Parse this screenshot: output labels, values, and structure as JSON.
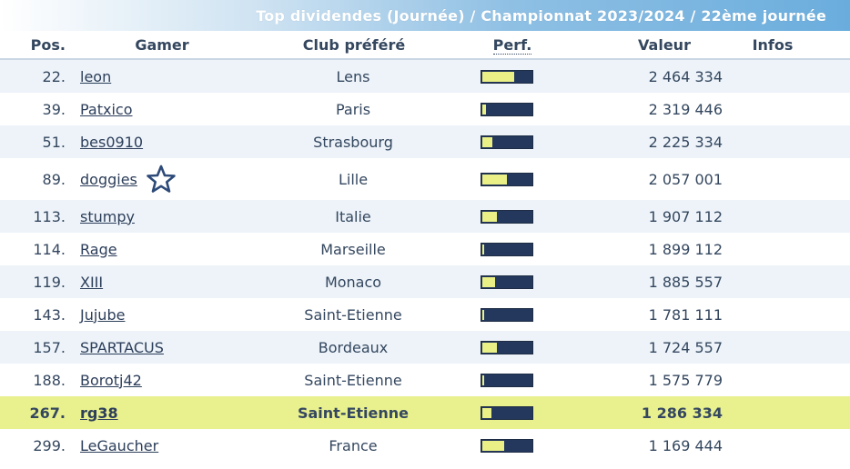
{
  "banner": {
    "title": "Top dividendes (Journée) / Championnat 2023/2024 / 22ème journée"
  },
  "headers": {
    "pos": "Pos.",
    "gamer": "Gamer",
    "club": "Club préféré",
    "perf": "Perf.",
    "value": "Valeur",
    "info": "Infos"
  },
  "rows": [
    {
      "pos": "22.",
      "gamer": "leon",
      "club": "Lens",
      "perf": 0.65,
      "value": "2 464 334"
    },
    {
      "pos": "39.",
      "gamer": "Patxico",
      "club": "Paris",
      "perf": 0.07,
      "value": "2 319 446"
    },
    {
      "pos": "51.",
      "gamer": "bes0910",
      "club": "Strasbourg",
      "perf": 0.2,
      "value": "2 225 334"
    },
    {
      "pos": "89.",
      "gamer": "doggies",
      "club": "Lille",
      "perf": 0.5,
      "value": "2 057 001",
      "star": true
    },
    {
      "pos": "113.",
      "gamer": "stumpy",
      "club": "Italie",
      "perf": 0.3,
      "value": "1 907 112"
    },
    {
      "pos": "114.",
      "gamer": "Rage",
      "club": "Marseille",
      "perf": 0.03,
      "value": "1 899 112"
    },
    {
      "pos": "119.",
      "gamer": "XIII",
      "club": "Monaco",
      "perf": 0.25,
      "value": "1 885 557"
    },
    {
      "pos": "143.",
      "gamer": "Jujube",
      "club": "Saint-Etienne",
      "perf": 0.03,
      "value": "1 781 111"
    },
    {
      "pos": "157.",
      "gamer": "SPARTACUS",
      "club": "Bordeaux",
      "perf": 0.3,
      "value": "1 724 557"
    },
    {
      "pos": "188.",
      "gamer": "Borotj42",
      "club": "Saint-Etienne",
      "perf": 0.03,
      "value": "1 575 779"
    },
    {
      "pos": "267.",
      "gamer": "rg38",
      "club": "Saint-Etienne",
      "perf": 0.18,
      "value": "1 286 334",
      "highlight": true
    },
    {
      "pos": "299.",
      "gamer": "LeGaucher",
      "club": "France",
      "perf": 0.45,
      "value": "1 169 444"
    }
  ],
  "colors": {
    "bar_fill": "#eaf086",
    "bar_bg": "#24385e",
    "highlight_row": "#e9f08e",
    "alt_row": "#edf3f9"
  },
  "icons": {
    "star": "star-outline-icon"
  }
}
